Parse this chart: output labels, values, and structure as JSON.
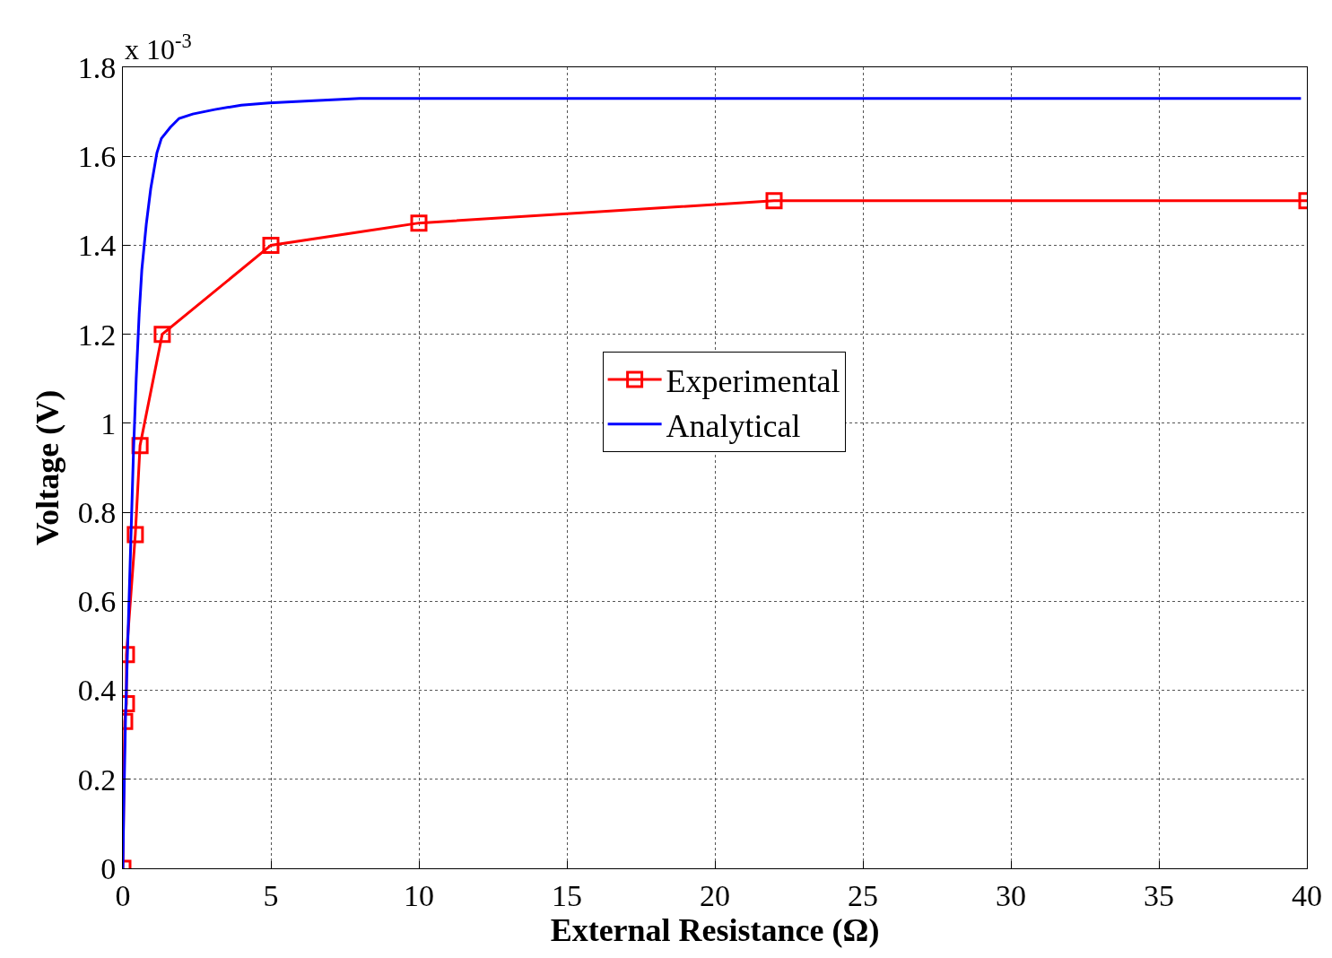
{
  "chart_data": {
    "type": "line",
    "xlabel": "External Resistance (Ω)",
    "ylabel": "Voltage (V)",
    "annotations": [
      "x 10$^{-3}$"
    ],
    "xlim": [
      0,
      40
    ],
    "xticks": [
      0,
      5,
      10,
      15,
      20,
      25,
      30,
      35,
      40
    ],
    "ylim": [
      0,
      1.8
    ],
    "yticks": [
      0,
      0.2,
      0.4,
      0.6,
      0.8,
      1,
      1.2,
      1.4,
      1.6,
      1.8
    ],
    "grid": true,
    "legend": "center",
    "series": [
      {
        "name": "Experimental",
        "color": "#ff0000",
        "marker": "square",
        "x": [
          0,
          0.06,
          0.12,
          0.12,
          0.42,
          0.58,
          1.33,
          5,
          10,
          22,
          40
        ],
        "values": [
          0,
          0.33,
          0.37,
          0.48,
          0.75,
          0.95,
          1.2,
          1.4,
          1.45,
          1.5,
          1.5
        ]
      },
      {
        "name": "Analytical",
        "color": "#0000ff",
        "marker": "none",
        "x": [
          0,
          0.03,
          0.09,
          0.18,
          0.27,
          0.36,
          0.45,
          0.55,
          0.64,
          0.79,
          0.94,
          1.15,
          1.3,
          1.6,
          1.9,
          2.36,
          3.1,
          4,
          4.94,
          6.45,
          8,
          39.8
        ],
        "values": [
          0,
          0.135,
          0.34,
          0.54,
          0.74,
          0.94,
          1.1,
          1.245,
          1.345,
          1.447,
          1.527,
          1.608,
          1.64,
          1.665,
          1.685,
          1.695,
          1.705,
          1.715,
          1.72,
          1.725,
          1.73,
          1.73
        ]
      }
    ]
  }
}
